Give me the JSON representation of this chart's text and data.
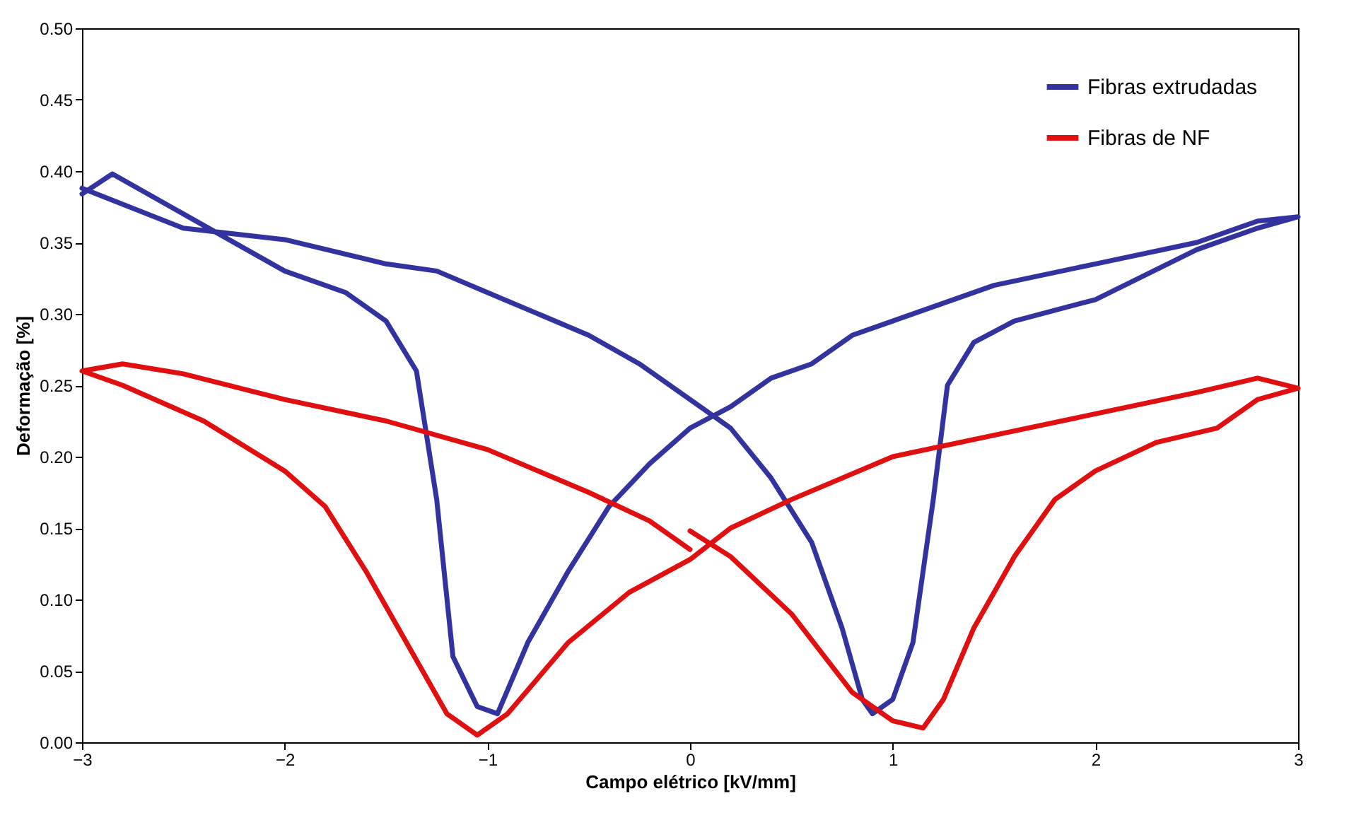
{
  "chart_data": {
    "type": "line",
    "xlabel": "Campo elétrico [kV/mm]",
    "ylabel": "Deformação [%]",
    "xlim": [
      -3,
      3
    ],
    "xticks": [
      -3,
      -2,
      -1,
      0,
      1,
      2,
      3
    ],
    "ylim": [
      0,
      0.5
    ],
    "yticks": [
      {
        "value": 0,
        "label": "0.00"
      },
      {
        "value": 0.05,
        "label": "0.05"
      },
      {
        "value": 0.1,
        "label": "0.10"
      },
      {
        "value": 0.15,
        "label": "0.15"
      },
      {
        "value": 0.2,
        "label": "0.20"
      },
      {
        "value": 0.25,
        "label": "0.25"
      },
      {
        "value": 0.3,
        "label": "0.30"
      },
      {
        "value": 0.35,
        "label": "0.35"
      },
      {
        "value": 0.4,
        "label": "0.40"
      },
      {
        "value": 0.45,
        "label": "0.45"
      },
      {
        "value": 0.5,
        "label": "0.50"
      }
    ],
    "grid": false,
    "legend": "top right",
    "marker": "none",
    "line_style": "solid",
    "series": [
      {
        "name": "Fibras extrudadas",
        "color": "#3333a0",
        "x": [
          -3,
          -2.5,
          -2,
          -1.5,
          -1.25,
          -1,
          -0.5,
          -0.25,
          0,
          0.2,
          0.4,
          0.6,
          0.75,
          0.85,
          0.9,
          1,
          1.1,
          1.2,
          1.27,
          1.4,
          1.6,
          2,
          2.5,
          2.8,
          3,
          2.8,
          2.5,
          2,
          1.5,
          1,
          0.8,
          0.6,
          0.4,
          0.2,
          0,
          -0.2,
          -0.4,
          -0.6,
          -0.8,
          -0.95,
          -1.05,
          -1.17,
          -1.25,
          -1.35,
          -1.5,
          -1.7,
          -2,
          -2.5,
          -2.85,
          -3
        ],
        "values": [
          0.388,
          0.36,
          0.352,
          0.335,
          0.33,
          0.315,
          0.285,
          0.265,
          0.24,
          0.22,
          0.185,
          0.14,
          0.08,
          0.03,
          0.02,
          0.03,
          0.07,
          0.17,
          0.25,
          0.28,
          0.295,
          0.31,
          0.345,
          0.36,
          0.368,
          0.365,
          0.35,
          0.335,
          0.32,
          0.295,
          0.285,
          0.265,
          0.255,
          0.235,
          0.22,
          0.195,
          0.165,
          0.12,
          0.07,
          0.02,
          0.025,
          0.06,
          0.17,
          0.26,
          0.295,
          0.315,
          0.33,
          0.37,
          0.398,
          0.384
        ]
      },
      {
        "name": "Fibras de NF",
        "color": "#e01010",
        "x": [
          0,
          0.2,
          0.5,
          0.8,
          1,
          1.15,
          1.25,
          1.4,
          1.6,
          1.8,
          2,
          2.3,
          2.6,
          2.8,
          3,
          2.8,
          2.5,
          2,
          1.5,
          1,
          0.5,
          0.2,
          0,
          -0.3,
          -0.6,
          -0.9,
          -1.05,
          -1.2,
          -1.4,
          -1.6,
          -1.8,
          -2,
          -2.4,
          -2.8,
          -3,
          -2.8,
          -2.5,
          -2,
          -1.5,
          -1,
          -0.5,
          -0.2,
          0
        ],
        "values": [
          0.148,
          0.13,
          0.09,
          0.035,
          0.015,
          0.01,
          0.03,
          0.08,
          0.13,
          0.17,
          0.19,
          0.21,
          0.22,
          0.24,
          0.248,
          0.255,
          0.245,
          0.23,
          0.215,
          0.2,
          0.17,
          0.15,
          0.128,
          0.105,
          0.07,
          0.02,
          0.005,
          0.02,
          0.07,
          0.12,
          0.165,
          0.19,
          0.225,
          0.25,
          0.26,
          0.265,
          0.258,
          0.24,
          0.225,
          0.205,
          0.175,
          0.155,
          0.135
        ]
      }
    ]
  }
}
